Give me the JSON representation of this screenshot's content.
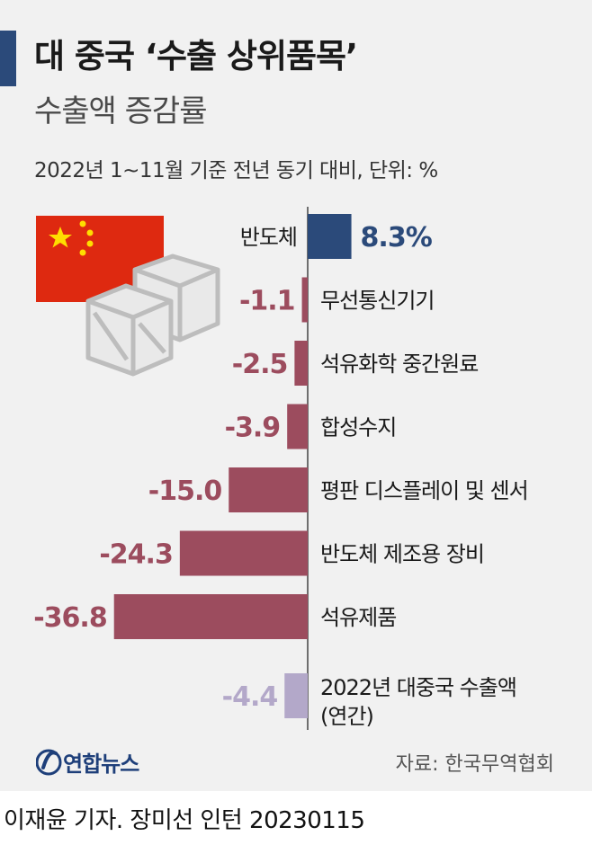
{
  "title": "대 중국 ‘수출 상위품목’",
  "subtitle": "수출액 증감률",
  "note": "2022년 1~11월 기준 전년 동기 대비, 단위: %",
  "colors": {
    "positive": "#2b4a7a",
    "negative": "#9c4c5e",
    "annual": "#b3a8c9",
    "accent_bar": "#2b4a7a",
    "flag_red": "#de2910",
    "flag_star": "#ffde00"
  },
  "icons": [
    "china-flag-icon",
    "crate-icon"
  ],
  "chart_data": {
    "type": "bar",
    "orientation": "horizontal",
    "unit": "%",
    "categories": [
      "반도체",
      "무선통신기기",
      "석유화학 중간원료",
      "합성수지",
      "평판 디스플레이 및 센서",
      "반도체 제조용 장비",
      "석유제품"
    ],
    "values": [
      8.3,
      -1.1,
      -2.5,
      -3.9,
      -15.0,
      -24.3,
      -36.8
    ],
    "value_labels": [
      "8.3%",
      "-1.1",
      "-2.5",
      "-3.9",
      "-15.0",
      "-24.3",
      "-36.8"
    ],
    "annual": {
      "label_lines": [
        "2022년 대중국 수출액",
        "(연간)"
      ],
      "value": -4.4,
      "value_label": "-4.4"
    }
  },
  "source": "자료: 한국무역협회",
  "logo_text": "연합뉴스",
  "credit": "이재윤 기자. 장미선 인턴  20230115"
}
